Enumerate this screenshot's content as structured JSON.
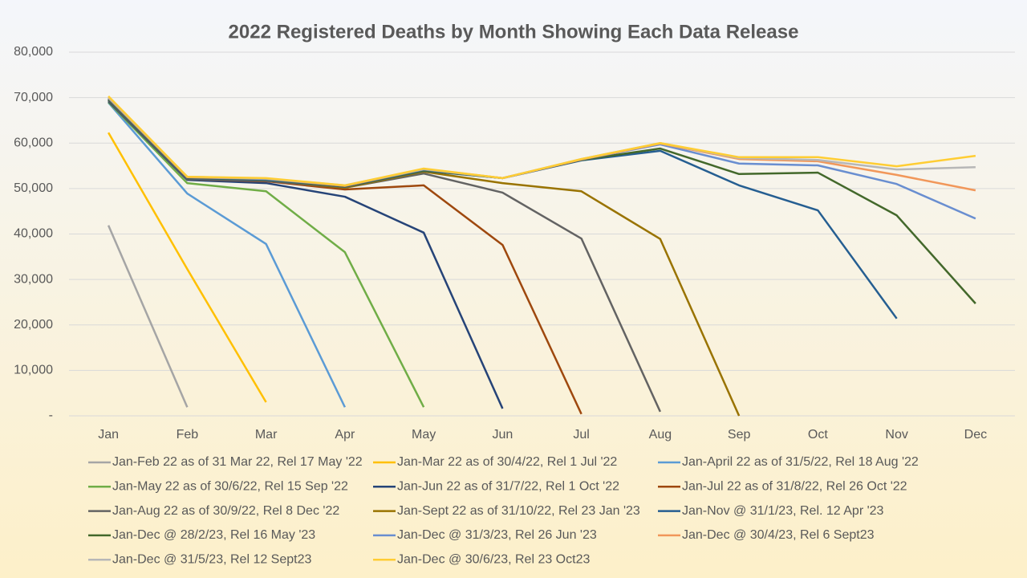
{
  "chart_data": {
    "type": "line",
    "title": "2022 Registered Deaths by Month Showing Each Data Release",
    "categories": [
      "Jan",
      "Feb",
      "Mar",
      "Apr",
      "May",
      "Jun",
      "Jul",
      "Aug",
      "Sep",
      "Oct",
      "Nov",
      "Dec"
    ],
    "ylim": [
      0,
      80000
    ],
    "yticks": [
      {
        "value": 0,
        "label": "-"
      },
      {
        "value": 10000,
        "label": "10,000"
      },
      {
        "value": 20000,
        "label": "20,000"
      },
      {
        "value": 30000,
        "label": "30,000"
      },
      {
        "value": 40000,
        "label": "40,000"
      },
      {
        "value": 50000,
        "label": "50,000"
      },
      {
        "value": 60000,
        "label": "60,000"
      },
      {
        "value": 70000,
        "label": "70,000"
      },
      {
        "value": 80000,
        "label": "80,000"
      }
    ],
    "grid": true,
    "legend": "bottom",
    "series": [
      {
        "name": "Jan-Feb 22 as of 31 Mar 22, Rel 17 May '22",
        "color": "#a5a5a5",
        "values": [
          41900,
          1900,
          null,
          null,
          null,
          null,
          null,
          null,
          null,
          null,
          null,
          null
        ]
      },
      {
        "name": "Jan-Mar 22 as of 30/4/22, Rel 1 Jul '22",
        "color": "#ffc000",
        "values": [
          62300,
          32300,
          3000,
          null,
          null,
          null,
          null,
          null,
          null,
          null,
          null,
          null
        ]
      },
      {
        "name": "Jan-April 22 as of 31/5/22, Rel 18 Aug '22",
        "color": "#5b9bd5",
        "values": [
          68900,
          48900,
          37800,
          1900,
          null,
          null,
          null,
          null,
          null,
          null,
          null,
          null
        ]
      },
      {
        "name": "Jan-May 22 as of 30/6/22, Rel 15 Sep '22",
        "color": "#70ad47",
        "values": [
          69000,
          51200,
          49400,
          36000,
          1900,
          null,
          null,
          null,
          null,
          null,
          null,
          null
        ]
      },
      {
        "name": "Jan-Jun 22 as of 31/7/22, Rel 1 Oct '22",
        "color": "#264478",
        "values": [
          69200,
          51900,
          51200,
          48200,
          40300,
          1600,
          null,
          null,
          null,
          null,
          null,
          null
        ]
      },
      {
        "name": "Jan-Jul 22 as of 31/8/22, Rel 26 Oct '22",
        "color": "#9e480e",
        "values": [
          69400,
          52100,
          51600,
          49800,
          50700,
          37600,
          400,
          null,
          null,
          null,
          null,
          null
        ]
      },
      {
        "name": "Jan-Aug 22 as of 30/9/22, Rel 8 Dec '22",
        "color": "#636363",
        "values": [
          69400,
          52100,
          51700,
          50200,
          53300,
          49100,
          39000,
          900,
          null,
          null,
          null,
          null
        ]
      },
      {
        "name": "Jan-Sept 22 as of 31/10/22, Rel 23 Jan '23",
        "color": "#997300",
        "values": [
          69600,
          52300,
          51900,
          50200,
          53700,
          51200,
          49400,
          38900,
          0,
          null,
          null,
          null
        ]
      },
      {
        "name": "Jan-Nov @ 31/1/23, Rel. 12 Apr '23",
        "color": "#255e91",
        "values": [
          69600,
          52300,
          51900,
          50400,
          53900,
          52300,
          56200,
          58300,
          50700,
          45200,
          21400,
          null
        ]
      },
      {
        "name": "Jan-Dec @ 28/2/23, Rel 16 May '23",
        "color": "#43682b",
        "values": [
          69700,
          52400,
          52000,
          50500,
          54000,
          52300,
          56300,
          58800,
          53200,
          53500,
          44100,
          24700
        ]
      },
      {
        "name": "Jan-Dec @ 31/3/23, Rel 26 Jun '23",
        "color": "#698ed0",
        "values": [
          69900,
          52500,
          52100,
          50600,
          54200,
          52300,
          56400,
          59700,
          55500,
          55100,
          51000,
          43400
        ]
      },
      {
        "name": "Jan-Dec @ 30/4/23, Rel 6 Sept23",
        "color": "#f1975a",
        "values": [
          70000,
          52500,
          52200,
          50600,
          54300,
          52300,
          56400,
          59900,
          56500,
          56000,
          53000,
          49600
        ]
      },
      {
        "name": "Jan-Dec @ 31/5/23, Rel 12 Sept23",
        "color": "#b7b7b7",
        "values": [
          70100,
          52600,
          52200,
          50700,
          54300,
          52300,
          56500,
          60000,
          56700,
          56300,
          54200,
          54700
        ]
      },
      {
        "name": "Jan-Dec @ 30/6/23, Rel 23 Oct23",
        "color": "#ffcd33",
        "values": [
          70300,
          52600,
          52300,
          50700,
          54400,
          52300,
          56500,
          60000,
          56900,
          56900,
          54900,
          57200
        ]
      }
    ]
  }
}
